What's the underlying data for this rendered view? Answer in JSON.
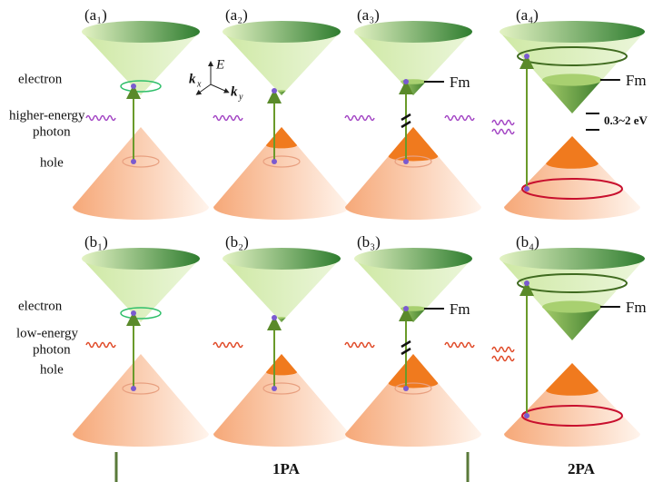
{
  "panels": [
    {
      "label": "(a₁)"
    },
    {
      "label": "(a₂)"
    },
    {
      "label": "(a₃)",
      "fermi_label": "Fm"
    },
    {
      "label": "(a₄)",
      "fermi_label": "Fm",
      "gap_label": "0.3~2 eV"
    },
    {
      "label": "(b₁)"
    },
    {
      "label": "(b₂)"
    },
    {
      "label": "(b₃)",
      "fermi_label": "Fm"
    },
    {
      "label": "(b₄)",
      "fermi_label": "Fm"
    }
  ],
  "row_a": {
    "electron": "electron",
    "photon_lines": [
      "higher-energy",
      "photon"
    ],
    "hole": "hole"
  },
  "row_b": {
    "electron": "electron",
    "photon_lines": [
      "low-energy",
      "photon"
    ],
    "hole": "hole"
  },
  "axes": {
    "energy": "E",
    "kx_base": "k",
    "kx_sub": "x",
    "ky_base": "k",
    "ky_sub": "y"
  },
  "footer": {
    "one_photon": "1PA",
    "two_photon": "2PA"
  }
}
